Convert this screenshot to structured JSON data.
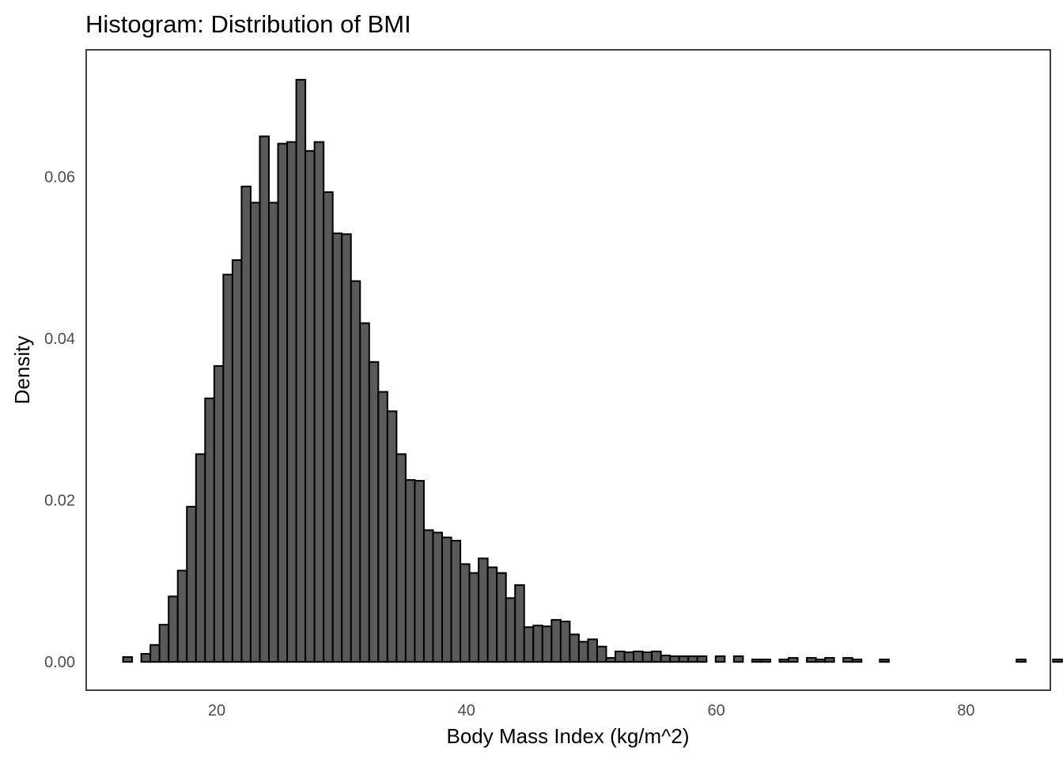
{
  "chart_data": {
    "type": "bar",
    "title": "Histogram: Distribution of BMI",
    "xlabel": "Body Mass Index (kg/m^2)",
    "ylabel": "Density",
    "xlim": [
      9.55,
      86.75
    ],
    "ylim": [
      -0.0035,
      0.0757
    ],
    "x_ticks": [
      20,
      40,
      60,
      80
    ],
    "y_ticks": [
      0.0,
      0.02,
      0.04,
      0.06
    ],
    "x_tick_labels": [
      "20",
      "40",
      "60",
      "80"
    ],
    "y_tick_labels": [
      "0.00",
      "0.02",
      "0.04",
      "0.06"
    ],
    "grid": false,
    "legend": "none",
    "colors": {
      "bar_fill": "#595959",
      "bar_outline": "#000000"
    },
    "bin_width": 0.73,
    "bin_start": 12.5,
    "values": [
      0.0006,
      0.0,
      0.001,
      0.0021,
      0.0046,
      0.0081,
      0.0113,
      0.0192,
      0.0257,
      0.0326,
      0.0366,
      0.0479,
      0.0497,
      0.0588,
      0.0568,
      0.065,
      0.0568,
      0.0641,
      0.0643,
      0.072,
      0.0632,
      0.0643,
      0.0581,
      0.053,
      0.0529,
      0.0471,
      0.0419,
      0.0371,
      0.0334,
      0.031,
      0.0257,
      0.0225,
      0.0224,
      0.0163,
      0.016,
      0.0154,
      0.015,
      0.0121,
      0.011,
      0.0128,
      0.0117,
      0.011,
      0.0079,
      0.0095,
      0.0043,
      0.0045,
      0.0044,
      0.0052,
      0.005,
      0.0034,
      0.0025,
      0.0028,
      0.0019,
      0.0005,
      0.0013,
      0.0012,
      0.0013,
      0.0012,
      0.0013,
      0.0008,
      0.0007,
      0.0007,
      0.0007,
      0.0007,
      0.0,
      0.0007,
      0.0,
      0.0007,
      0.0,
      0.0003,
      0.0003,
      0.0,
      0.0003,
      0.0005,
      0.0,
      0.0005,
      0.0003,
      0.0005,
      0.0,
      0.0005,
      0.0003,
      0.0,
      0.0,
      0.0003,
      0.0,
      0.0,
      0.0,
      0.0,
      0.0,
      0.0,
      0.0,
      0.0,
      0.0,
      0.0,
      0.0,
      0.0,
      0.0,
      0.0,
      0.0003,
      0.0,
      0.0,
      0.0,
      0.0003
    ]
  }
}
